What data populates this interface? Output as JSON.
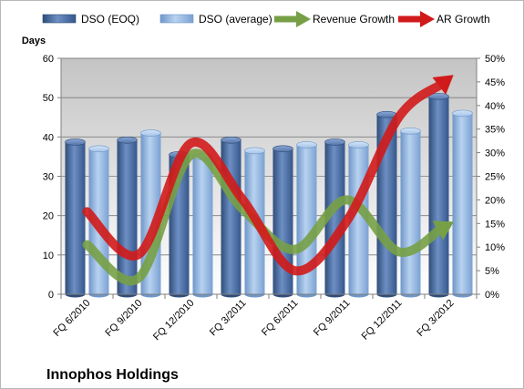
{
  "caption": "Innophos Holdings",
  "chart_data": {
    "type": "bar",
    "categories": [
      "FQ 6/2010",
      "FQ 9/2010",
      "FQ 12/2010",
      "FQ 3/2011",
      "FQ 6/2011",
      "FQ 9/2011",
      "FQ 12/2011",
      "FQ 3/2012"
    ],
    "ylabel": "Days",
    "ylim": [
      0,
      60
    ],
    "yticks": [
      0,
      10,
      20,
      30,
      40,
      50,
      60
    ],
    "y2lim": [
      0,
      50
    ],
    "y2ticks": [
      "0%",
      "5%",
      "10%",
      "15%",
      "20%",
      "25%",
      "30%",
      "35%",
      "40%",
      "45%",
      "50%"
    ],
    "grid": true,
    "legend_position": "top",
    "series": [
      {
        "name": "DSO (EOQ)",
        "type": "bar",
        "axis": "left",
        "color": "#4a6b9d",
        "values": [
          38.7,
          39.2,
          35.5,
          39.2,
          37,
          38.7,
          45.7,
          50.3
        ]
      },
      {
        "name": "DSO (average)",
        "type": "bar",
        "axis": "left",
        "color": "#8db4e2",
        "values": [
          37,
          41,
          35,
          36.5,
          38,
          38,
          41.5,
          46
        ]
      },
      {
        "name": "Revenue Growth",
        "type": "line",
        "axis": "right",
        "unit": "%",
        "color": "#77a046",
        "values": [
          10.5,
          3.5,
          29.5,
          18,
          9.5,
          20,
          9,
          15
        ]
      },
      {
        "name": "AR Growth",
        "type": "line",
        "axis": "right",
        "unit": "%",
        "color": "#d11a1a",
        "values": [
          17.5,
          8.5,
          32,
          20,
          5,
          15.5,
          37.5,
          46
        ]
      }
    ]
  }
}
